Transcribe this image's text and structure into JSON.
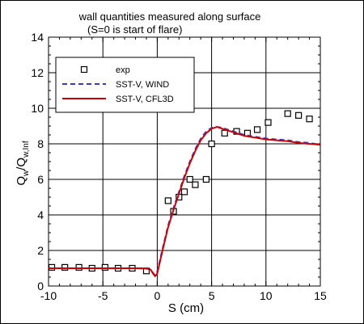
{
  "chart_data": {
    "type": "line",
    "title": "wall quantities measured along surface",
    "subtitle": "(S=0 is start of flare)",
    "xlabel": "S (cm)",
    "ylabel": {
      "base": "Q",
      "sub1": "w",
      "sep": "/Q",
      "sub2": "w,Inf"
    },
    "xlim": [
      -10,
      15
    ],
    "ylim": [
      0,
      14
    ],
    "xticks": [
      -10,
      -5,
      0,
      5,
      10,
      15
    ],
    "yticks": [
      0,
      2,
      4,
      6,
      8,
      10,
      12,
      14
    ],
    "xtick_labels": [
      "-10",
      "-5",
      "0",
      "5",
      "10",
      "15"
    ],
    "ytick_labels": [
      "0",
      "2",
      "4",
      "6",
      "8",
      "10",
      "12",
      "14"
    ],
    "grid": true,
    "legend_position": "top-left",
    "series": [
      {
        "name": "exp",
        "style": "marker",
        "color": "#000000",
        "x": [
          -9.7,
          -8.5,
          -7.2,
          -6.0,
          -4.8,
          -3.6,
          -2.3,
          -1.0,
          1.0,
          1.5,
          2.0,
          2.5,
          3.0,
          3.5,
          4.5,
          5.0,
          6.2,
          7.3,
          8.3,
          9.2,
          10.2,
          12.0,
          13.0,
          14.0
        ],
        "y": [
          1.05,
          1.05,
          1.05,
          1.0,
          1.05,
          1.0,
          1.0,
          0.85,
          4.8,
          4.2,
          5.0,
          5.3,
          6.0,
          5.7,
          6.0,
          8.0,
          8.6,
          8.7,
          8.6,
          8.8,
          9.2,
          9.7,
          9.6,
          9.4
        ]
      },
      {
        "name": "SST-V, WIND",
        "style": "dashed",
        "color": "#3a3ac8",
        "x": [
          -10,
          -5,
          -2,
          -1.0,
          -0.6,
          -0.4,
          -0.2,
          0.0,
          0.3,
          0.6,
          1.0,
          1.5,
          2.0,
          2.5,
          3.0,
          3.5,
          4.0,
          4.5,
          5.0,
          5.5,
          6.0,
          7.0,
          8.0,
          9.0,
          10.0,
          11.0,
          12.0,
          13.0,
          14.0,
          15.0
        ],
        "y": [
          1.0,
          1.0,
          1.0,
          1.0,
          0.95,
          0.75,
          0.6,
          0.8,
          1.6,
          2.4,
          3.4,
          4.4,
          5.3,
          6.2,
          7.0,
          7.7,
          8.3,
          8.7,
          8.9,
          8.95,
          8.9,
          8.7,
          8.5,
          8.4,
          8.3,
          8.25,
          8.2,
          8.1,
          8.05,
          7.95
        ]
      },
      {
        "name": "SST-V, CFL3D",
        "style": "solid",
        "color": "#cc0000",
        "x": [
          -10,
          -5,
          -2,
          -1.0,
          -0.6,
          -0.4,
          -0.2,
          0.0,
          0.3,
          0.6,
          1.0,
          1.5,
          2.0,
          2.5,
          3.0,
          3.5,
          4.0,
          4.5,
          5.0,
          5.5,
          6.0,
          7.0,
          8.0,
          9.0,
          10.0,
          11.0,
          12.0,
          13.0,
          14.0,
          15.0
        ],
        "y": [
          1.0,
          1.0,
          1.0,
          0.98,
          0.92,
          0.72,
          0.55,
          0.7,
          1.5,
          2.3,
          3.3,
          4.3,
          5.2,
          6.1,
          6.9,
          7.6,
          8.2,
          8.6,
          8.85,
          8.95,
          8.85,
          8.65,
          8.45,
          8.35,
          8.25,
          8.2,
          8.15,
          8.05,
          8.0,
          7.95
        ]
      }
    ]
  }
}
